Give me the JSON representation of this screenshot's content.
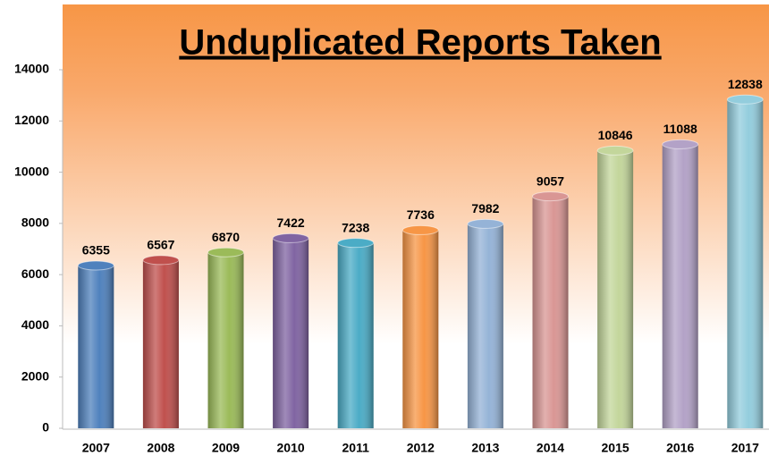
{
  "chart_data": {
    "type": "bar",
    "title": "Unduplicated Reports Taken",
    "categories": [
      "2007",
      "2008",
      "2009",
      "2010",
      "2011",
      "2012",
      "2013",
      "2014",
      "2015",
      "2016",
      "2017"
    ],
    "values": [
      6355,
      6567,
      6870,
      7422,
      7238,
      7736,
      7982,
      9057,
      10846,
      11088,
      12838
    ],
    "colors": [
      "#4f81bd",
      "#c0504d",
      "#9bbb59",
      "#8064a2",
      "#4bacc6",
      "#f79646",
      "#95b3d7",
      "#d99694",
      "#c3d69b",
      "#b3a2c7",
      "#93cddd"
    ],
    "ylim": [
      0,
      14000
    ],
    "yticks": [
      0,
      2000,
      4000,
      6000,
      8000,
      10000,
      12000,
      14000
    ],
    "grid": false
  }
}
